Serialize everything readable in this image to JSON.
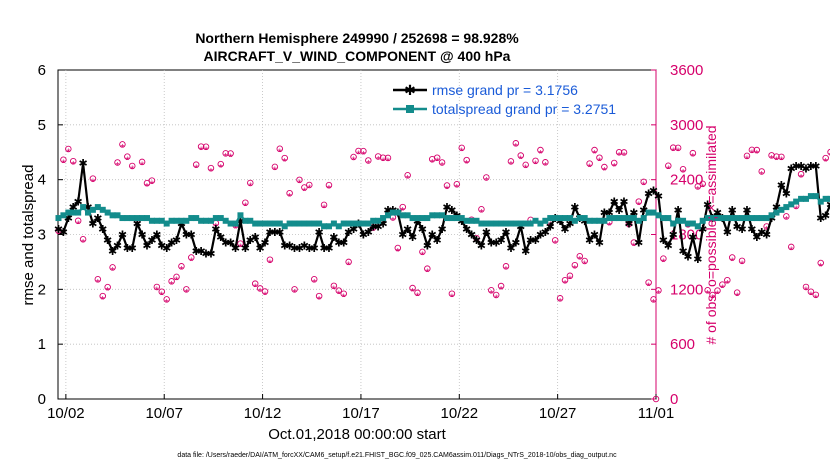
{
  "chart_data": {
    "type": "line",
    "title_line1": "Northern Hemisphere 249990 / 252698 = 98.928%",
    "title_line2": "AIRCRAFT_V_WIND_COMPONENT @ 400 hPa",
    "xlabel": "Oct.01,2018 00:00:00 start",
    "ylabel_left": "rmse and totalspread",
    "ylabel_right": "# of obs: o=possible; ×=assimilated",
    "footer": "data file: /Users/raeder/DAI/ATM_forcXX/CAM6_setup/f.e21.FHIST_BGC.f09_025.CAM6assim.011/Diags_NTrS_2018-10/obs_diag_output.nc",
    "x_range_days": [
      0.6,
      31.0
    ],
    "x_ticks": [
      {
        "day": 1,
        "label": "10/02"
      },
      {
        "day": 6,
        "label": "10/07"
      },
      {
        "day": 11,
        "label": "10/12"
      },
      {
        "day": 16,
        "label": "10/17"
      },
      {
        "day": 21,
        "label": "10/22"
      },
      {
        "day": 26,
        "label": "10/27"
      },
      {
        "day": 31,
        "label": "11/01"
      }
    ],
    "ylim_left": [
      0,
      6
    ],
    "yticks_left": [
      "0",
      "1",
      "2",
      "3",
      "4",
      "5",
      "6"
    ],
    "ylim_right": [
      0,
      3600
    ],
    "yticks_right": [
      "0",
      "600",
      "1200",
      "1800",
      "2400",
      "3000",
      "3600"
    ],
    "legend": [
      {
        "label": "rmse grand pr = 3.1756",
        "color": "#000000"
      },
      {
        "label": "totalspread grand pr = 3.2751",
        "color": "#138c8c"
      }
    ],
    "series": [
      {
        "name": "rmse",
        "color": "#000000",
        "x_start": 0.625,
        "x_step": 0.25,
        "values": [
          3.1,
          3.05,
          3.3,
          3.5,
          3.6,
          4.3,
          3.5,
          3.2,
          3.3,
          3.1,
          2.9,
          2.7,
          2.8,
          3.0,
          2.75,
          2.75,
          3.2,
          3.0,
          2.8,
          2.9,
          3.0,
          2.8,
          2.75,
          2.85,
          2.9,
          3.2,
          3.0,
          3.0,
          2.7,
          2.7,
          2.65,
          2.65,
          3.1,
          2.95,
          2.85,
          2.85,
          2.75,
          3.25,
          2.75,
          2.9,
          2.95,
          2.75,
          2.85,
          3.05,
          3.05,
          3.05,
          2.8,
          2.8,
          2.75,
          2.75,
          2.8,
          2.75,
          2.75,
          3.05,
          2.75,
          2.75,
          2.95,
          2.85,
          2.85,
          3.05,
          3.1,
          3.2,
          3.0,
          3.05,
          3.15,
          3.15,
          3.2,
          3.45,
          3.45,
          3.4,
          3.0,
          3.1,
          2.95,
          3.25,
          3.1,
          2.8,
          3.0,
          2.9,
          3.1,
          3.5,
          3.45,
          3.35,
          3.25,
          3.1,
          3.0,
          2.9,
          2.8,
          3.05,
          2.85,
          2.85,
          2.9,
          3.05,
          2.75,
          2.85,
          3.15,
          2.7,
          2.9,
          2.9,
          3.0,
          3.05,
          3.15,
          3.3,
          3.25,
          3.1,
          3.2,
          3.5,
          3.3,
          3.25,
          2.9,
          3.0,
          2.85,
          3.4,
          3.4,
          3.6,
          3.45,
          3.6,
          3.2,
          3.4,
          2.85,
          3.45,
          3.75,
          3.8,
          3.7,
          2.9,
          2.8,
          3.0,
          3.45,
          2.7,
          2.6,
          2.95,
          2.55,
          3.1,
          3.55,
          3.3,
          3.4,
          3.3,
          3.05,
          3.45,
          3.15,
          3.1,
          3.45,
          3.1,
          2.95,
          3.05,
          3.0,
          3.3,
          3.5,
          3.9,
          3.75,
          4.2,
          4.25,
          4.25,
          4.2,
          4.25,
          4.25,
          3.3,
          3.35,
          3.55,
          3.65,
          3.65
        ]
      },
      {
        "name": "totalspread",
        "color": "#138c8c",
        "x_start": 0.625,
        "x_step": 0.25,
        "values": [
          3.3,
          3.35,
          3.4,
          3.4,
          3.4,
          3.5,
          3.4,
          3.45,
          3.5,
          3.45,
          3.4,
          3.35,
          3.35,
          3.3,
          3.3,
          3.3,
          3.3,
          3.3,
          3.3,
          3.25,
          3.25,
          3.25,
          3.2,
          3.25,
          3.25,
          3.25,
          3.25,
          3.3,
          3.3,
          3.25,
          3.25,
          3.25,
          3.3,
          3.3,
          3.25,
          3.2,
          3.2,
          3.35,
          3.25,
          3.25,
          3.2,
          3.2,
          3.2,
          3.2,
          3.2,
          3.2,
          3.15,
          3.2,
          3.2,
          3.2,
          3.2,
          3.2,
          3.2,
          3.2,
          3.15,
          3.15,
          3.2,
          3.15,
          3.2,
          3.2,
          3.2,
          3.2,
          3.2,
          3.2,
          3.25,
          3.25,
          3.3,
          3.35,
          3.4,
          3.4,
          3.35,
          3.35,
          3.3,
          3.3,
          3.3,
          3.3,
          3.35,
          3.35,
          3.35,
          3.3,
          3.3,
          3.3,
          3.3,
          3.25,
          3.25,
          3.25,
          3.2,
          3.2,
          3.2,
          3.2,
          3.2,
          3.2,
          3.2,
          3.2,
          3.2,
          3.2,
          3.2,
          3.25,
          3.2,
          3.25,
          3.3,
          3.3,
          3.3,
          3.3,
          3.3,
          3.25,
          3.3,
          3.3,
          3.25,
          3.25,
          3.25,
          3.25,
          3.3,
          3.3,
          3.3,
          3.3,
          3.3,
          3.3,
          3.25,
          3.3,
          3.4,
          3.4,
          3.35,
          3.3,
          3.3,
          3.2,
          3.25,
          3.25,
          3.2,
          3.2,
          3.15,
          3.25,
          3.3,
          3.3,
          3.3,
          3.3,
          3.3,
          3.3,
          3.3,
          3.3,
          3.3,
          3.3,
          3.3,
          3.3,
          3.3,
          3.35,
          3.4,
          3.45,
          3.5,
          3.55,
          3.6,
          3.65,
          3.65,
          3.7,
          3.7,
          3.6,
          3.65,
          3.65,
          3.7,
          3.65
        ]
      }
    ],
    "obs_counts": {
      "x_start": 0.625,
      "x_step": 0.25,
      "pattern_day": [
        1900,
        2630,
        2700,
        2650,
        1950,
        1700,
        2100,
        2400,
        1250,
        1150,
        1200,
        1500,
        2600,
        2750,
        2700,
        2550
      ],
      "pattern_weekend": [
        1200,
        2350,
        2350,
        2330,
        1250,
        1150,
        1150,
        1300,
        1300,
        1500,
        1550,
        1450,
        2600,
        2700,
        2600,
        2300
      ]
    }
  }
}
